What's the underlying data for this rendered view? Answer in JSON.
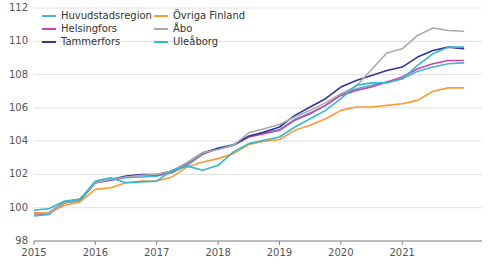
{
  "chart_data": {
    "type": "line",
    "x": [
      2015.0,
      2015.25,
      2015.5,
      2015.75,
      2016.0,
      2016.25,
      2016.5,
      2016.75,
      2017.0,
      2017.25,
      2017.5,
      2017.75,
      2018.0,
      2018.25,
      2018.5,
      2018.75,
      2019.0,
      2019.25,
      2019.5,
      2019.75,
      2020.0,
      2020.25,
      2020.5,
      2020.75,
      2021.0,
      2021.25,
      2021.5,
      2021.75,
      2022.0
    ],
    "series": [
      {
        "name": "Huvudstadsregion",
        "color": "#4db3d4",
        "values": [
          99.5,
          99.6,
          100.3,
          100.4,
          101.5,
          101.65,
          101.8,
          101.85,
          101.9,
          102.1,
          102.55,
          103.2,
          103.6,
          103.8,
          104.3,
          104.5,
          104.7,
          105.3,
          105.7,
          106.15,
          106.8,
          107.15,
          107.35,
          107.55,
          107.75,
          108.2,
          108.45,
          108.65,
          108.7
        ]
      },
      {
        "name": "Helsingfors",
        "color": "#cc44aa",
        "values": [
          99.6,
          99.7,
          100.35,
          100.5,
          101.5,
          101.65,
          101.85,
          101.95,
          101.95,
          102.15,
          102.65,
          103.25,
          103.55,
          103.75,
          104.25,
          104.45,
          104.65,
          105.25,
          105.65,
          106.15,
          106.75,
          107.05,
          107.25,
          107.55,
          107.85,
          108.35,
          108.65,
          108.85,
          108.85
        ]
      },
      {
        "name": "Tammerfors",
        "color": "#333399",
        "values": [
          99.6,
          99.7,
          100.3,
          100.5,
          101.5,
          101.7,
          101.9,
          102.0,
          102.0,
          102.2,
          102.7,
          103.3,
          103.55,
          103.75,
          104.3,
          104.55,
          104.85,
          105.55,
          106.05,
          106.55,
          107.25,
          107.65,
          107.95,
          108.25,
          108.45,
          109.05,
          109.45,
          109.65,
          109.55
        ]
      },
      {
        "name": "Övriga Finland",
        "color": "#ff9933",
        "values": [
          99.7,
          99.7,
          100.15,
          100.35,
          101.1,
          101.2,
          101.5,
          101.6,
          101.6,
          101.85,
          102.45,
          102.75,
          102.95,
          103.25,
          103.8,
          104.0,
          104.1,
          104.65,
          104.95,
          105.35,
          105.85,
          106.05,
          106.05,
          106.15,
          106.25,
          106.45,
          107.0,
          107.2,
          107.2
        ]
      },
      {
        "name": "Åbo",
        "color": "#aaaaaa",
        "values": [
          99.6,
          99.7,
          100.3,
          100.5,
          101.5,
          101.7,
          101.85,
          101.95,
          102.0,
          102.2,
          102.7,
          103.3,
          103.5,
          103.75,
          104.5,
          104.75,
          105.0,
          105.45,
          105.85,
          106.3,
          106.85,
          107.3,
          108.3,
          109.3,
          109.55,
          110.35,
          110.8,
          110.65,
          110.6
        ]
      },
      {
        "name": "Uleåborg",
        "color": "#33b8cc",
        "values": [
          99.85,
          99.95,
          100.4,
          100.5,
          101.6,
          101.8,
          101.5,
          101.55,
          101.6,
          102.25,
          102.5,
          102.25,
          102.55,
          103.35,
          103.85,
          104.05,
          104.25,
          104.85,
          105.35,
          105.85,
          106.55,
          107.35,
          107.5,
          107.5,
          107.75,
          108.55,
          109.25,
          109.65,
          109.65
        ]
      }
    ],
    "xlim": [
      2015.0,
      2022.3
    ],
    "xticks": [
      2015,
      2016,
      2017,
      2018,
      2019,
      2020,
      2021
    ],
    "ylim": [
      98,
      112
    ],
    "yticks": [
      98,
      100,
      102,
      104,
      106,
      108,
      110,
      112
    ],
    "grid": true,
    "legend": "upper left"
  }
}
